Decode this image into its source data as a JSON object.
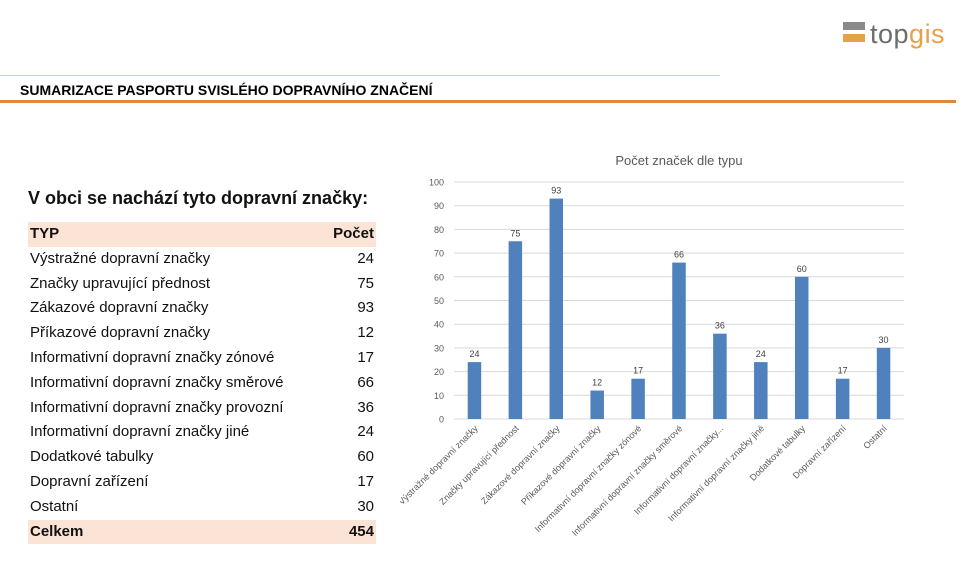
{
  "logo": {
    "part1": "top",
    "part2": "gis"
  },
  "header": {
    "title": "SUMARIZACE PASPORTU SVISLÉHO DOPRAVNÍHO ZNAČENÍ"
  },
  "table": {
    "heading": "V obci se nachází tyto dopravní značky:",
    "col_type": "TYP",
    "col_count": "Počet",
    "rows": [
      {
        "type": "Výstražné dopravní značky",
        "count": "24"
      },
      {
        "type": "Značky upravující přednost",
        "count": "75"
      },
      {
        "type": "Zákazové dopravní značky",
        "count": "93"
      },
      {
        "type": "Příkazové dopravní značky",
        "count": "12"
      },
      {
        "type": "Informativní dopravní značky zónové",
        "count": "17"
      },
      {
        "type": "Informativní dopravní značky směrové",
        "count": "66"
      },
      {
        "type": "Informativní dopravní značky provozní",
        "count": "36"
      },
      {
        "type": "Informativní dopravní značky jiné",
        "count": "24"
      },
      {
        "type": "Dodatkové tabulky",
        "count": "60"
      },
      {
        "type": "Dopravní zařízení",
        "count": "17"
      },
      {
        "type": "Ostatní",
        "count": "30"
      }
    ],
    "total_label": "Celkem",
    "total_value": "454"
  },
  "chart_data": {
    "type": "bar",
    "title": "Počet značek dle typu",
    "categories": [
      "Výstražné dopravní značky",
      "Značky upravující přednost",
      "Zákazové dopravní značky",
      "Příkazové dopravní značky",
      "Informativní dopravní značky zónové",
      "Informativní dopravní značky směrové",
      "Informativní dopravní značky...",
      "Informativní dopravní značky jiné",
      "Dodatkové tabulky",
      "Dopravní zařízení",
      "Ostatní"
    ],
    "values": [
      24,
      75,
      93,
      12,
      17,
      66,
      36,
      24,
      60,
      17,
      30
    ],
    "yticks": [
      0,
      10,
      20,
      30,
      40,
      50,
      60,
      70,
      80,
      90,
      100
    ],
    "ylim": [
      0,
      100
    ],
    "grid": true,
    "bar_color": "#4f81bd"
  }
}
